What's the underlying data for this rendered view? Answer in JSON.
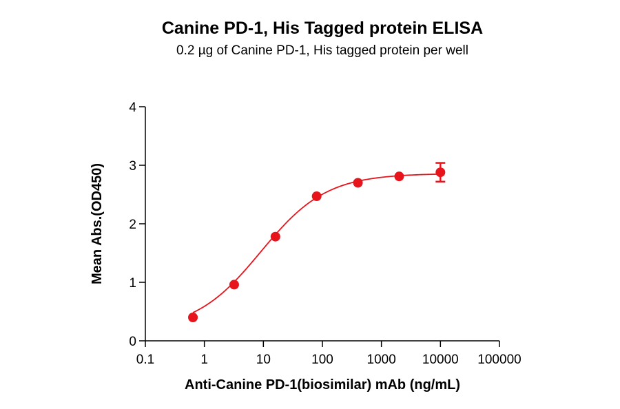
{
  "chart_data": {
    "type": "scatter",
    "title": "Canine PD-1, His Tagged protein ELISA",
    "subtitle": "0.2 µg of Canine PD-1, His tagged protein per well",
    "xlabel": "Anti-Canine PD-1(biosimilar) mAb (ng/mL)",
    "ylabel": "Mean Abs.(OD450)",
    "x_scale": "log",
    "xlim": [
      0.1,
      100000
    ],
    "ylim": [
      0,
      4
    ],
    "x_ticks": [
      0.1,
      1,
      10,
      100,
      1000,
      10000,
      100000
    ],
    "x_tick_labels": [
      "0.1",
      "1",
      "10",
      "100",
      "1000",
      "10000",
      "100000"
    ],
    "y_ticks": [
      0,
      1,
      2,
      3,
      4
    ],
    "y_tick_labels": [
      "0",
      "1",
      "2",
      "3",
      "4"
    ],
    "grid": false,
    "legend": "none",
    "series": [
      {
        "color": "#e8141c",
        "x": [
          0.64,
          3.2,
          16,
          80,
          400,
          2000,
          10000
        ],
        "y": [
          0.4,
          0.96,
          1.78,
          2.47,
          2.7,
          2.81,
          2.88
        ],
        "yerr": [
          0.0,
          0.0,
          0.0,
          0.0,
          0.0,
          0.0,
          0.16
        ],
        "fit": {
          "model": "4PL",
          "bottom": 0.18,
          "top": 2.86,
          "ec50": 9.0,
          "hill": 0.78,
          "x_range": [
            0.64,
            10000
          ]
        }
      }
    ]
  }
}
